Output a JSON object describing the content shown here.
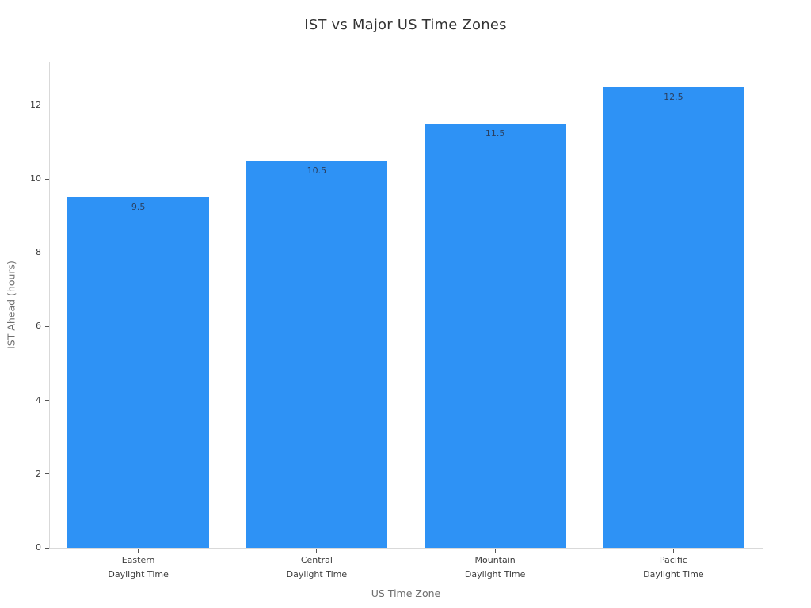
{
  "title": "IST vs Major US Time Zones",
  "chart_data": {
    "type": "bar",
    "title": "IST vs Major US Time Zones",
    "categories": [
      "Eastern Daylight Time",
      "Central Daylight Time",
      "Mountain Daylight Time",
      "Pacific Daylight Time"
    ],
    "values": [
      9.5,
      10.5,
      11.5,
      12.5
    ],
    "bar_labels": [
      "9.5",
      "10.5",
      "11.5",
      "12.5"
    ],
    "xlabel": "US Time Zone",
    "ylabel": "IST Ahead (hours)",
    "yticks": [
      0,
      2,
      4,
      6,
      8,
      10,
      12
    ],
    "ylim": [
      0,
      13.18
    ],
    "bar_color": "#2e92f5",
    "value_label_position": "inside-top",
    "grid": false,
    "legend": "none",
    "colors": {
      "axis_line": "#d9d9d9",
      "tick_text": "#3b3b3b",
      "axis_title_text": "#6e6e6e",
      "title_text": "#333333",
      "value_label_text": "#2a3f5f"
    }
  }
}
